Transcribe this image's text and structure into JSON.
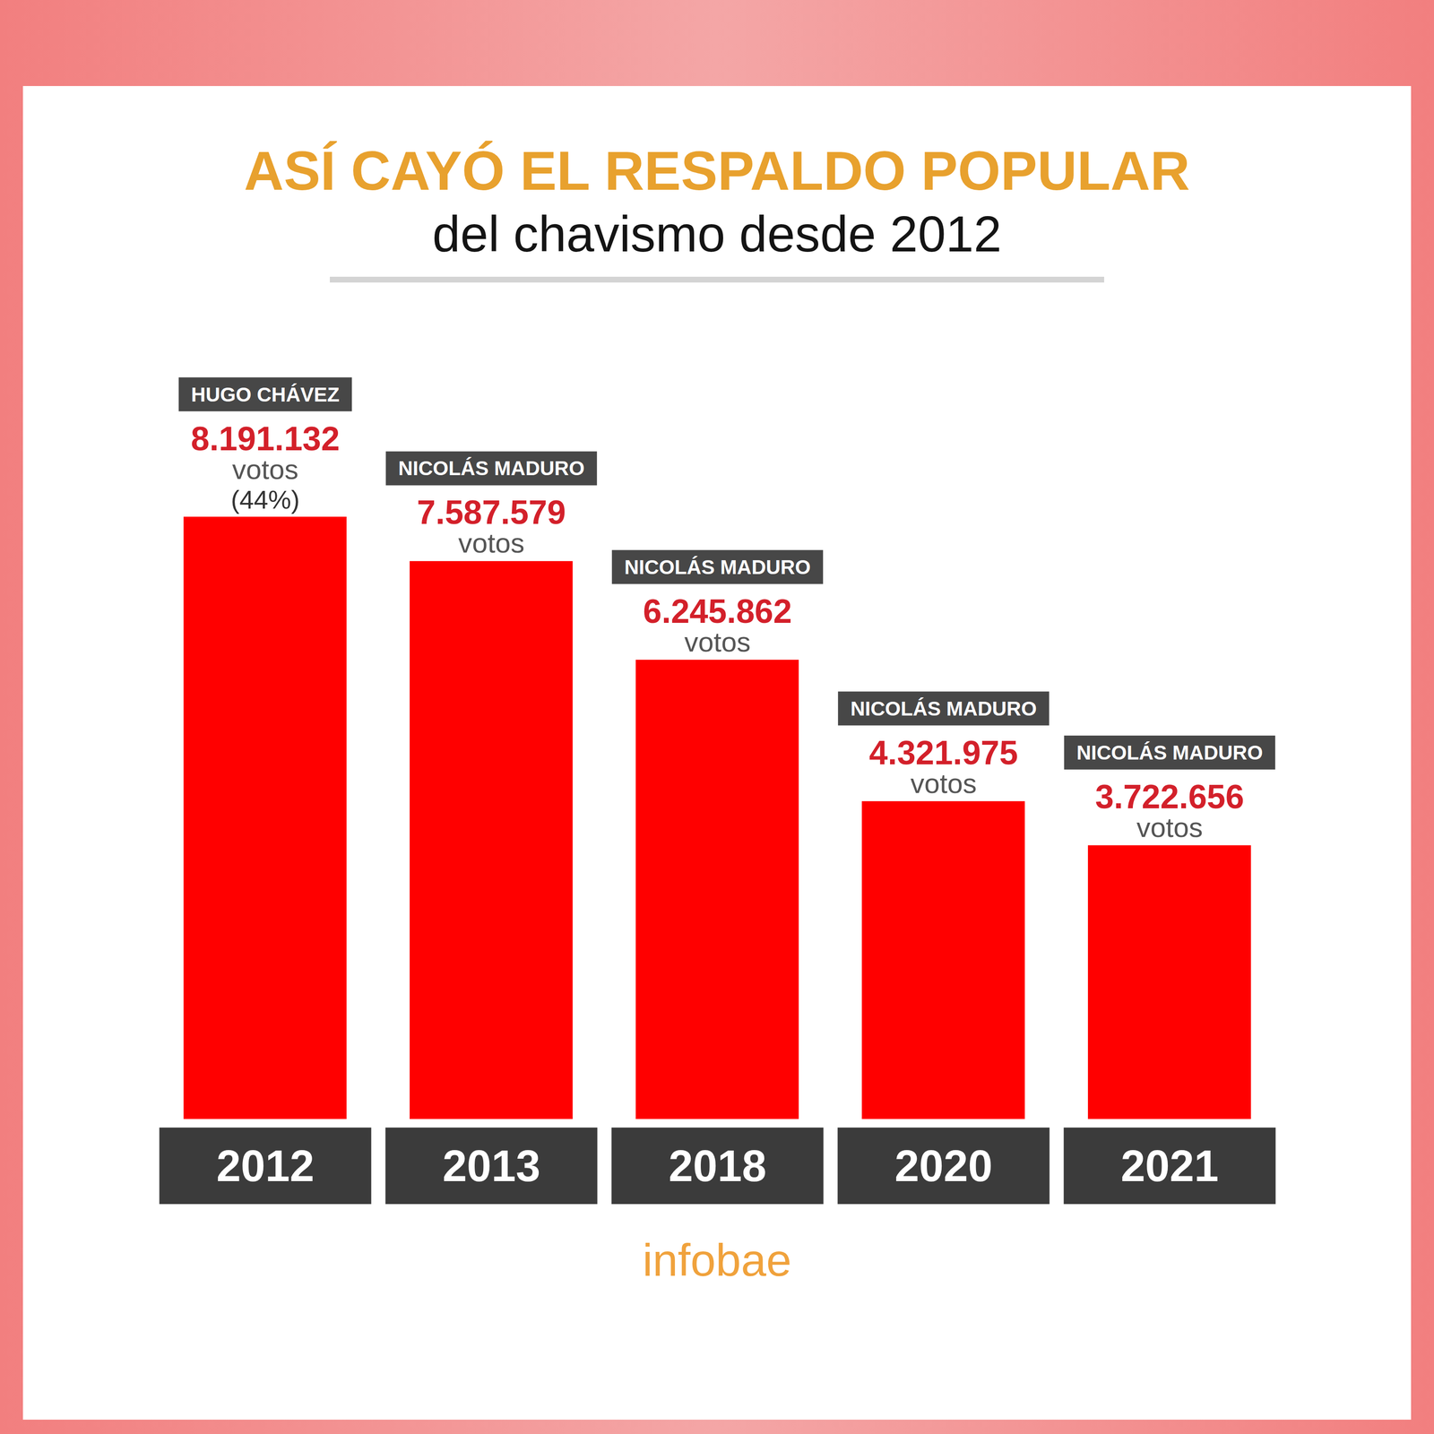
{
  "chart_data": {
    "type": "bar",
    "title": "ASÍ CAYÓ EL RESPALDO POPULAR",
    "subtitle": "del chavismo desde 2012",
    "categories": [
      "2012",
      "2013",
      "2018",
      "2020",
      "2021"
    ],
    "values": [
      8191132,
      7587579,
      6245862,
      4321975,
      3722656
    ],
    "value_labels": [
      "8.191.132",
      "7.587.579",
      "6.245.862",
      "4.321.975",
      "3.722.656"
    ],
    "color": "#ff0000",
    "data_labels": true,
    "tick_labels": "x",
    "annotations": [
      {
        "x": "2012",
        "label": "HUGO CHÁVEZ",
        "unit": "votos",
        "note": "(44%)"
      },
      {
        "x": "2013",
        "label": "NICOLÁS MADURO",
        "unit": "votos"
      },
      {
        "x": "2018",
        "label": "NICOLÁS MADURO",
        "unit": "votos"
      },
      {
        "x": "2020",
        "label": "NICOLÁS MADURO",
        "unit": "votos"
      },
      {
        "x": "2021",
        "label": "NICOLÁS MADURO",
        "unit": "votos"
      }
    ],
    "source": "infobae"
  }
}
